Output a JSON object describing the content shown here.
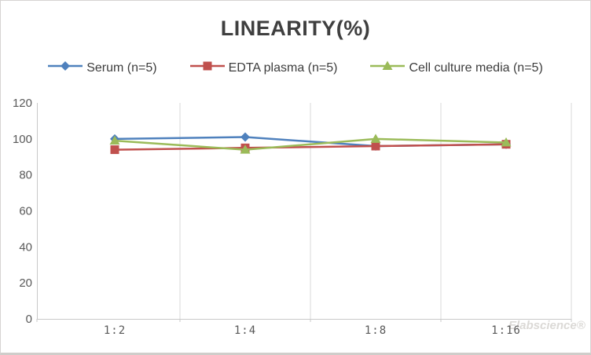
{
  "chart_data": {
    "type": "line",
    "title": "LINEARITY(%)",
    "categories": [
      "1:2",
      "1:4",
      "1:8",
      "1:16"
    ],
    "series": [
      {
        "name": "Serum (n=5)",
        "marker": "diamond",
        "color": "#4F81BD",
        "values": [
          100,
          101,
          96,
          97
        ]
      },
      {
        "name": "EDTA plasma (n=5)",
        "marker": "square",
        "color": "#C0504D",
        "values": [
          94,
          95,
          96,
          97
        ]
      },
      {
        "name": "Cell culture media (n=5)",
        "marker": "triangle",
        "color": "#9BBB59",
        "values": [
          99,
          94,
          100,
          98
        ]
      }
    ],
    "ylim": [
      0,
      120
    ],
    "yticks": [
      0,
      20,
      40,
      60,
      80,
      100,
      120
    ],
    "xlabel": "",
    "ylabel": "",
    "grid": "vertical-only",
    "legend_position": "top"
  },
  "watermark": "Elabscience®",
  "colors": {
    "title_text": "#3f3f3f",
    "axis_text": "#595959",
    "legend_text": "#3d3d3d",
    "gridline": "#d9d9d9",
    "axis_line": "#c9c9c9",
    "frame_border": "#d6d4d2",
    "background": "#ffffff"
  }
}
